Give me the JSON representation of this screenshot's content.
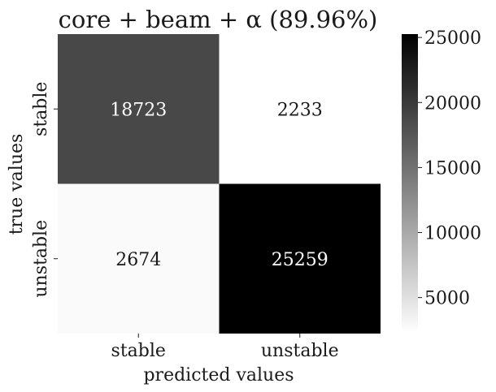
{
  "chart_data": {
    "type": "heatmap",
    "title": "core + beam + α (89.96%)",
    "xlabel": "predicted values",
    "ylabel": "true values",
    "x_categories": [
      "stable",
      "unstable"
    ],
    "y_categories": [
      "stable",
      "unstable"
    ],
    "values": [
      [
        18723,
        2233
      ],
      [
        2674,
        25259
      ]
    ],
    "colorbar": {
      "min": 2233,
      "max": 25259,
      "ticks": [
        5000,
        10000,
        15000,
        20000,
        25000
      ],
      "tick_labels": [
        "5000",
        "10000",
        "15000",
        "20000",
        "25000"
      ],
      "colormap": "greys"
    },
    "colors": {
      "low": "#ffffff",
      "high": "#000000"
    }
  }
}
